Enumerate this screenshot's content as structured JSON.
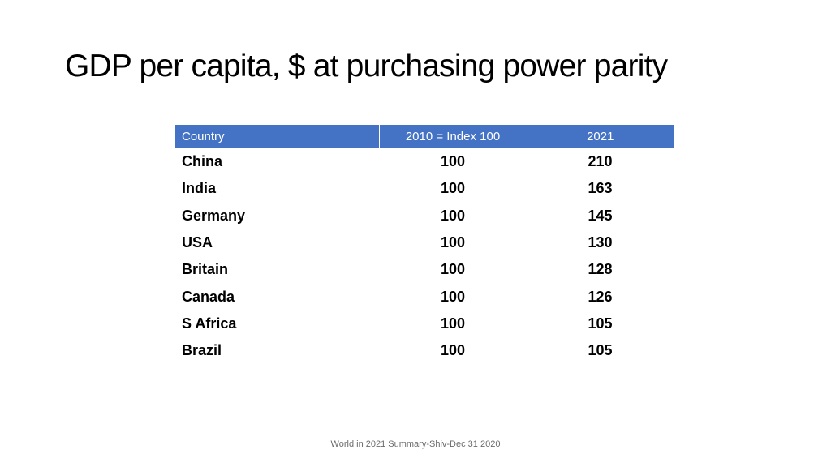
{
  "slide": {
    "title": "GDP per capita, $ at purchasing power parity",
    "footer": "World in 2021 Summary-Shiv-Dec 31 2020"
  },
  "colors": {
    "header_fill": "#4472c4",
    "header_text": "#ffffff"
  },
  "table": {
    "headers": [
      "Country",
      "2010 = Index 100",
      "2021"
    ],
    "rows": [
      [
        "China",
        "100",
        "210"
      ],
      [
        "India",
        "100",
        "163"
      ],
      [
        "Germany",
        "100",
        "145"
      ],
      [
        "USA",
        "100",
        "130"
      ],
      [
        "Britain",
        "100",
        "128"
      ],
      [
        "Canada",
        "100",
        "126"
      ],
      [
        "S Africa",
        "100",
        "105"
      ],
      [
        "Brazil",
        "100",
        "105"
      ]
    ]
  }
}
